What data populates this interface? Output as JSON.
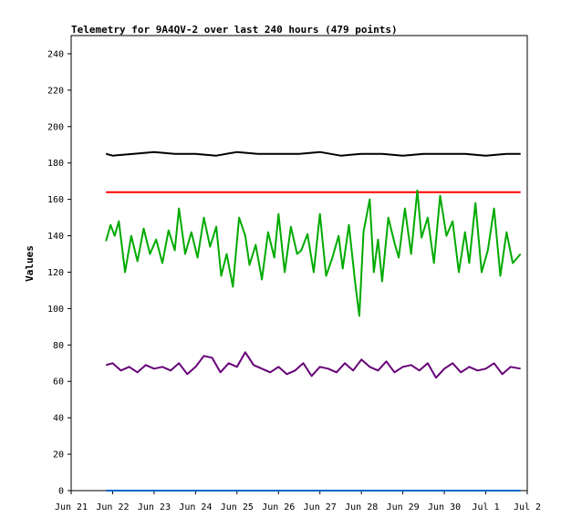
{
  "chart_data": {
    "type": "line",
    "title": "Telemetry for 9A4QV-2 over last 240 hours (479 points)",
    "ylabel": "Values",
    "xlabel": "",
    "ylim": [
      0,
      250
    ],
    "y_ticks": [
      0,
      20,
      40,
      60,
      80,
      100,
      120,
      140,
      160,
      180,
      200,
      220,
      240
    ],
    "x_ticks": [
      "Jun 21",
      "Jun 22",
      "Jun 23",
      "Jun 24",
      "Jun 25",
      "Jun 26",
      "Jun 27",
      "Jun 28",
      "Jun 29",
      "Jun 30",
      "Jul 1",
      "Jul 2"
    ],
    "x_range_days": [
      0,
      11
    ],
    "series_style": [
      {
        "color": "#000000"
      },
      {
        "color": "#ff0000"
      },
      {
        "color": "#00aa00"
      },
      {
        "color": "#660077"
      },
      {
        "color": "#0066cc"
      }
    ],
    "series": [
      {
        "color": "#000000",
        "x": [
          0.84,
          1.0,
          1.5,
          2.0,
          2.5,
          3.0,
          3.5,
          4.0,
          4.5,
          5.0,
          5.5,
          6.0,
          6.5,
          7.0,
          7.5,
          8.0,
          8.5,
          9.0,
          9.5,
          10.0,
          10.5,
          10.84
        ],
        "y": [
          185,
          184,
          185,
          186,
          185,
          185,
          184,
          186,
          185,
          185,
          185,
          186,
          184,
          185,
          185,
          184,
          185,
          185,
          185,
          184,
          185,
          185
        ]
      },
      {
        "color": "#ff0000",
        "x": [
          0.84,
          10.84
        ],
        "y": [
          164,
          164
        ]
      },
      {
        "color": "#00aa00",
        "x": [
          0.84,
          0.95,
          1.05,
          1.15,
          1.3,
          1.45,
          1.6,
          1.75,
          1.9,
          2.05,
          2.2,
          2.35,
          2.5,
          2.6,
          2.75,
          2.9,
          3.05,
          3.2,
          3.35,
          3.5,
          3.62,
          3.75,
          3.9,
          4.05,
          4.2,
          4.3,
          4.45,
          4.6,
          4.75,
          4.9,
          5.0,
          5.15,
          5.3,
          5.45,
          5.55,
          5.7,
          5.85,
          6.0,
          6.15,
          6.3,
          6.45,
          6.55,
          6.7,
          6.85,
          6.95,
          7.05,
          7.2,
          7.3,
          7.4,
          7.5,
          7.65,
          7.8,
          7.9,
          8.05,
          8.2,
          8.35,
          8.45,
          8.6,
          8.75,
          8.9,
          9.05,
          9.2,
          9.35,
          9.5,
          9.6,
          9.75,
          9.9,
          10.05,
          10.2,
          10.35,
          10.5,
          10.65,
          10.84
        ],
        "y": [
          137,
          146,
          140,
          148,
          120,
          140,
          126,
          144,
          130,
          138,
          125,
          143,
          132,
          155,
          130,
          142,
          128,
          150,
          134,
          145,
          118,
          130,
          112,
          150,
          140,
          124,
          135,
          116,
          142,
          128,
          152,
          120,
          145,
          130,
          132,
          141,
          120,
          152,
          118,
          128,
          140,
          122,
          146,
          114,
          96,
          142,
          160,
          120,
          138,
          115,
          150,
          136,
          128,
          155,
          130,
          165,
          139,
          150,
          125,
          162,
          140,
          148,
          120,
          142,
          125,
          158,
          120,
          132,
          155,
          118,
          142,
          125,
          130
        ]
      },
      {
        "color": "#660077",
        "x": [
          0.84,
          1.0,
          1.2,
          1.4,
          1.6,
          1.8,
          2.0,
          2.2,
          2.4,
          2.6,
          2.8,
          3.0,
          3.2,
          3.4,
          3.6,
          3.8,
          4.0,
          4.2,
          4.4,
          4.6,
          4.8,
          5.0,
          5.2,
          5.4,
          5.6,
          5.8,
          6.0,
          6.2,
          6.4,
          6.6,
          6.8,
          7.0,
          7.2,
          7.4,
          7.6,
          7.8,
          8.0,
          8.2,
          8.4,
          8.6,
          8.8,
          9.0,
          9.2,
          9.4,
          9.6,
          9.8,
          10.0,
          10.2,
          10.4,
          10.6,
          10.84
        ],
        "y": [
          69,
          70,
          66,
          68,
          65,
          69,
          67,
          68,
          66,
          70,
          64,
          68,
          74,
          73,
          65,
          70,
          68,
          76,
          69,
          67,
          65,
          68,
          64,
          66,
          70,
          63,
          68,
          67,
          65,
          70,
          66,
          72,
          68,
          66,
          71,
          65,
          68,
          69,
          66,
          70,
          62,
          67,
          70,
          65,
          68,
          66,
          67,
          70,
          64,
          68,
          67
        ]
      },
      {
        "color": "#0066cc",
        "x": [
          0.84,
          10.84
        ],
        "y": [
          0,
          0
        ]
      }
    ]
  }
}
